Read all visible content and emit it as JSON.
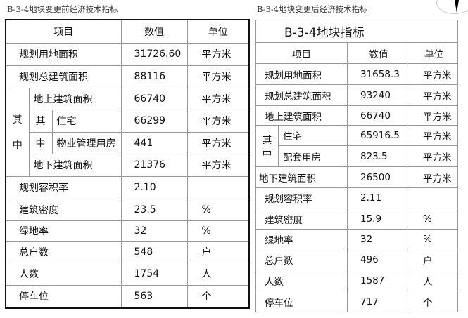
{
  "left": {
    "caption": "B-3-4地块变更前经济技术指标",
    "header": [
      "项目",
      "数值",
      "单位"
    ],
    "rows": [
      {
        "label": "规划用地面积",
        "value": "31726.60",
        "unit": "平方米"
      },
      {
        "label": "规划总建筑面积",
        "value": "88116",
        "unit": "平方米"
      },
      {
        "label": "地上建筑面积",
        "value": "66740",
        "unit": "平方米"
      },
      {
        "label": "住宅",
        "value": "66299",
        "unit": "平方米"
      },
      {
        "label": "物业管理用房",
        "value": "441",
        "unit": "平方米"
      },
      {
        "label": "地下建筑面积",
        "value": "21376",
        "unit": "平方米"
      },
      {
        "label": "规划容积率",
        "value": "2.10",
        "unit": ""
      },
      {
        "label": "建筑密度",
        "value": "23.5",
        "unit": "%"
      },
      {
        "label": "绿地率",
        "value": "32",
        "unit": "%"
      },
      {
        "label": "总户数",
        "value": "548",
        "unit": "户"
      },
      {
        "label": "人数",
        "value": "1754",
        "unit": "人"
      },
      {
        "label": "停车位",
        "value": "563",
        "unit": "个"
      }
    ],
    "group_outer": [
      "其",
      "中"
    ],
    "group_inner": [
      "其",
      "中"
    ]
  },
  "right": {
    "caption": "B-3-4地块变更后经济技术指标",
    "title": "B-3-4地块指标",
    "header": [
      "项目",
      "数值",
      "单位"
    ],
    "rows": [
      {
        "label": "规划用地面积",
        "value": "31658.3",
        "unit": "平方米"
      },
      {
        "label": "规划总建筑面积",
        "value": "93240",
        "unit": "平方米"
      },
      {
        "label": "地上建筑面积",
        "value": "66740",
        "unit": "平方米"
      },
      {
        "label": "住宅",
        "value": "65916.5",
        "unit": "平方米"
      },
      {
        "label": "配套用房",
        "value": "823.5",
        "unit": "平方米"
      },
      {
        "label": "地下建筑面积",
        "value": "26500",
        "unit": "平方米"
      },
      {
        "label": "规划容积率",
        "value": "2.11",
        "unit": ""
      },
      {
        "label": "建筑密度",
        "value": "15.9",
        "unit": "%"
      },
      {
        "label": "绿地率",
        "value": "32",
        "unit": "%"
      },
      {
        "label": "总户数",
        "value": "496",
        "unit": "户"
      },
      {
        "label": "人数",
        "value": "1587",
        "unit": "人"
      },
      {
        "label": "停车位",
        "value": "717",
        "unit": "个"
      }
    ],
    "group": [
      "其",
      "中"
    ]
  }
}
